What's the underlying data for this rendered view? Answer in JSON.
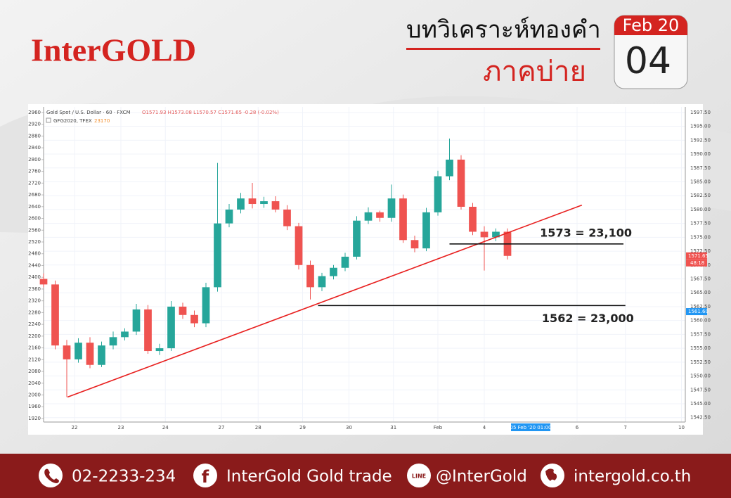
{
  "header": {
    "logo": "InterGOLD",
    "title": "บทวิเคราะห์ทองคำ",
    "subtitle": "ภาคบ่าย",
    "calendar_month": "Feb 20",
    "calendar_day": "04"
  },
  "chart_data": {
    "type": "candlestick",
    "title": "Gold Spot / U.S. Dollar · 60 · FXCM",
    "ohlc_text": "O1571.93 H1573.08 L1570.57 C1571.65 -0.28 (-0.02%)",
    "compare_label": "GFG2020, TFEX",
    "compare_value": 23170,
    "x": [
      0,
      6,
      12,
      18,
      24,
      30,
      36,
      42,
      48,
      54,
      60,
      66,
      72,
      78,
      84,
      90,
      96,
      102,
      108,
      114,
      120,
      126,
      132,
      138,
      144,
      150,
      156,
      162,
      168,
      174,
      180,
      186,
      192,
      198,
      204,
      210,
      216,
      222,
      228,
      234,
      240
    ],
    "open": [
      1567.5,
      1566.5,
      1555.5,
      1553,
      1556,
      1552,
      1555.5,
      1557,
      1558,
      1562,
      1554.5,
      1555,
      1562.5,
      1561,
      1559.5,
      1566,
      1577.5,
      1580,
      1582,
      1581,
      1581.5,
      1580,
      1577,
      1570,
      1566,
      1568,
      1569.5,
      1571.5,
      1578,
      1579.5,
      1578.5,
      1582,
      1574.5,
      1573,
      1579.5,
      1586,
      1589,
      1580.5,
      1576,
      1575,
      1576
    ],
    "high": [
      1568.5,
      1567.2,
      1556.5,
      1556.8,
      1557,
      1556.2,
      1558,
      1558.6,
      1563,
      1562.8,
      1555.8,
      1563.5,
      1563.2,
      1561.8,
      1566.8,
      1588.4,
      1581,
      1583,
      1584.8,
      1582.3,
      1582.4,
      1580.8,
      1577.6,
      1570.8,
      1568.6,
      1570,
      1572.2,
      1578.8,
      1580.4,
      1579.8,
      1584.5,
      1582.7,
      1575.3,
      1580.3,
      1587,
      1592.8,
      1589.8,
      1581.2,
      1577,
      1576.6,
      1576.6
    ],
    "low": [
      1566,
      1554.8,
      1546.2,
      1552.4,
      1551.4,
      1551.6,
      1554.8,
      1556.4,
      1557.4,
      1554,
      1553.8,
      1554.5,
      1560.3,
      1558.8,
      1558.8,
      1565.2,
      1576.8,
      1579.3,
      1580.2,
      1580.3,
      1579.5,
      1576.3,
      1569.2,
      1563.8,
      1565.3,
      1567.4,
      1568.9,
      1571,
      1577.4,
      1577.8,
      1577.8,
      1574,
      1572.3,
      1572.5,
      1578.9,
      1585.3,
      1580,
      1575.4,
      1569,
      1574.3,
      1571
    ],
    "close": [
      1566.5,
      1555.5,
      1553,
      1556,
      1552,
      1555.5,
      1557,
      1558,
      1562,
      1554.5,
      1555,
      1562.5,
      1561,
      1559.5,
      1566,
      1577.5,
      1580,
      1582,
      1581,
      1581.5,
      1580,
      1577,
      1570,
      1566,
      1568,
      1569.5,
      1571.5,
      1578,
      1579.5,
      1578.5,
      1582,
      1574.5,
      1573,
      1579.5,
      1586,
      1589,
      1580.5,
      1576,
      1575,
      1576,
      1571.65
    ],
    "up_color": "#26a69a",
    "down_color": "#ef5350",
    "xlim": [
      0,
      332
    ],
    "xticks": [
      {
        "value": 16,
        "label": "22"
      },
      {
        "value": 40,
        "label": "23"
      },
      {
        "value": 63,
        "label": "24"
      },
      {
        "value": 92,
        "label": "27"
      },
      {
        "value": 111,
        "label": "28"
      },
      {
        "value": 134,
        "label": "29"
      },
      {
        "value": 158,
        "label": "30"
      },
      {
        "value": 181,
        "label": "31"
      },
      {
        "value": 204,
        "label": "Feb"
      },
      {
        "value": 228,
        "label": "4"
      },
      {
        "value": 276,
        "label": "6"
      },
      {
        "value": 301,
        "label": "7"
      },
      {
        "value": 330,
        "label": "10"
      }
    ],
    "cursor_x": 248,
    "cursor_label": "05 Feb '20 01:00",
    "ylim": [
      1541.7,
      1598.5
    ],
    "yticks": [
      {
        "value": 1542.5,
        "label": "1542.50"
      },
      {
        "value": 1545,
        "label": "1545.00"
      },
      {
        "value": 1547.5,
        "label": "1547.50"
      },
      {
        "value": 1550,
        "label": "1550.00"
      },
      {
        "value": 1552.5,
        "label": "1552.50"
      },
      {
        "value": 1555,
        "label": "1555.00"
      },
      {
        "value": 1557.5,
        "label": "1557.50"
      },
      {
        "value": 1560,
        "label": "1560.00"
      },
      {
        "value": 1562.5,
        "label": "1562.50"
      },
      {
        "value": 1565,
        "label": "1565.00"
      },
      {
        "value": 1567.5,
        "label": "1567.50"
      },
      {
        "value": 1570,
        "label": "1570.00"
      },
      {
        "value": 1572.5,
        "label": "1572.50"
      },
      {
        "value": 1575,
        "label": "1575.00"
      },
      {
        "value": 1577.5,
        "label": "1577.50"
      },
      {
        "value": 1580,
        "label": "1580.00"
      },
      {
        "value": 1582.5,
        "label": "1582.50"
      },
      {
        "value": 1585,
        "label": "1585.00"
      },
      {
        "value": 1587.5,
        "label": "1587.50"
      },
      {
        "value": 1590,
        "label": "1590.00"
      },
      {
        "value": 1592.5,
        "label": "1592.50"
      },
      {
        "value": 1595,
        "label": "1595.00"
      },
      {
        "value": 1597.5,
        "label": "1597.50"
      }
    ],
    "y2lim": [
      1908,
      2979
    ],
    "y2ticks": [
      1920,
      1960,
      2000,
      2040,
      2080,
      2120,
      2160,
      2200,
      2240,
      2280,
      2320,
      2360,
      2400,
      2440,
      2480,
      2520,
      2560,
      2600,
      2640,
      2680,
      2720,
      2760,
      2800,
      2840,
      2880,
      2920,
      2960
    ],
    "grid": true,
    "price_tags": [
      {
        "value": 1571.65,
        "color": "#ef5350"
      },
      {
        "value": 1561.6,
        "label": "1561.60",
        "color": "#2196f3"
      }
    ],
    "countdown": "48:18",
    "trendline": {
      "x": [
        12.4,
        278.5
      ],
      "y": [
        1546.2,
        1580.8
      ],
      "color": "#e8201f"
    },
    "levels": [
      {
        "label": "1573 = 23,100",
        "value": 1573.8,
        "x": [
          210,
          300
        ]
      },
      {
        "label": "1562 = 23,000",
        "value": 1562.7,
        "x": [
          142,
          301
        ]
      }
    ]
  },
  "footer": {
    "phone": "02-2233-234",
    "facebook": "InterGold Gold trade",
    "line_icon": "LINE",
    "line": "@InterGold",
    "website": "intergold.co.th"
  }
}
